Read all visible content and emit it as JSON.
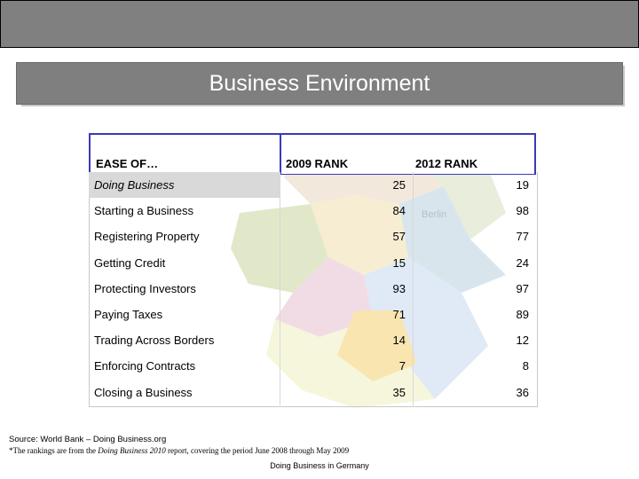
{
  "slide_title": "Business Environment",
  "table": {
    "headers": [
      "EASE OF…",
      "2009 RANK",
      "2012 RANK"
    ],
    "rows": [
      {
        "name": "Doing Business",
        "r2009": "25",
        "r2012": "19"
      },
      {
        "name": "Starting a Business",
        "r2009": "84",
        "r2012": "98"
      },
      {
        "name": "Registering Property",
        "r2009": "57",
        "r2012": "77"
      },
      {
        "name": "Getting Credit",
        "r2009": "15",
        "r2012": "24"
      },
      {
        "name": "Protecting Investors",
        "r2009": "93",
        "r2012": "97"
      },
      {
        "name": "Paying Taxes",
        "r2009": "71",
        "r2012": "89"
      },
      {
        "name": "Trading Across Borders",
        "r2009": "14",
        "r2012": "12"
      },
      {
        "name": "Enforcing Contracts",
        "r2009": "7",
        "r2012": "8"
      },
      {
        "name": "Closing a Business",
        "r2009": "35",
        "r2012": "36"
      }
    ]
  },
  "source": "Source:  World Bank – Doing Business.org",
  "note": {
    "prefix": "*The rankings are from the ",
    "report": "Doing Business 2010",
    "suffix": " report, covering the period June 2008 through May 2009"
  },
  "footer": "Doing Business in Germany",
  "map_label": "Berlin",
  "colors": {
    "top_bar": "#808080",
    "title_box": "#7f7f7f",
    "header_border": "#3a3ab8",
    "highlight_row": "#d9d9d9"
  }
}
